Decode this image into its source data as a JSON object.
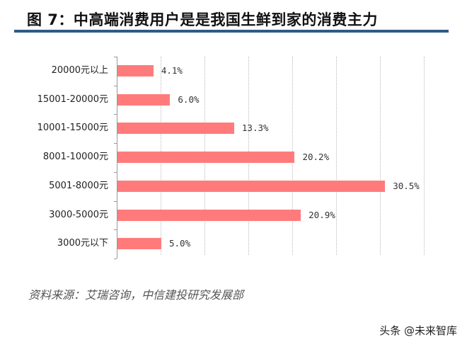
{
  "header": {
    "title": "图 7：中高端消费用户是是我国生鲜到家的消费主力",
    "rule_color": "#2f5b87"
  },
  "chart_data": {
    "type": "bar",
    "orientation": "horizontal",
    "title": "图 7：中高端消费用户是是我国生鲜到家的消费主力",
    "categories": [
      "20000元以上",
      "15001-20000元",
      "10001-15000元",
      "8001-10000元",
      "5001-8000元",
      "3000-5000元",
      "3000元以下"
    ],
    "values": [
      4.1,
      6.0,
      13.3,
      20.2,
      30.5,
      20.9,
      5.0
    ],
    "labels": [
      "4.1%",
      "6.0%",
      "13.3%",
      "20.2%",
      "30.5%",
      "20.9%",
      "5.0%"
    ],
    "unit": "%",
    "xlabel": "",
    "ylabel": "",
    "xlim": [
      0,
      35
    ],
    "grid": true,
    "gridlines_x": [
      5,
      10,
      15,
      20,
      25,
      30,
      35
    ],
    "bar_color": "#ff7b7b",
    "legend": null
  },
  "footer": {
    "source": "资料来源：艾瑞咨询，中信建投研究发展部",
    "watermark": "头条 @未来智库"
  }
}
